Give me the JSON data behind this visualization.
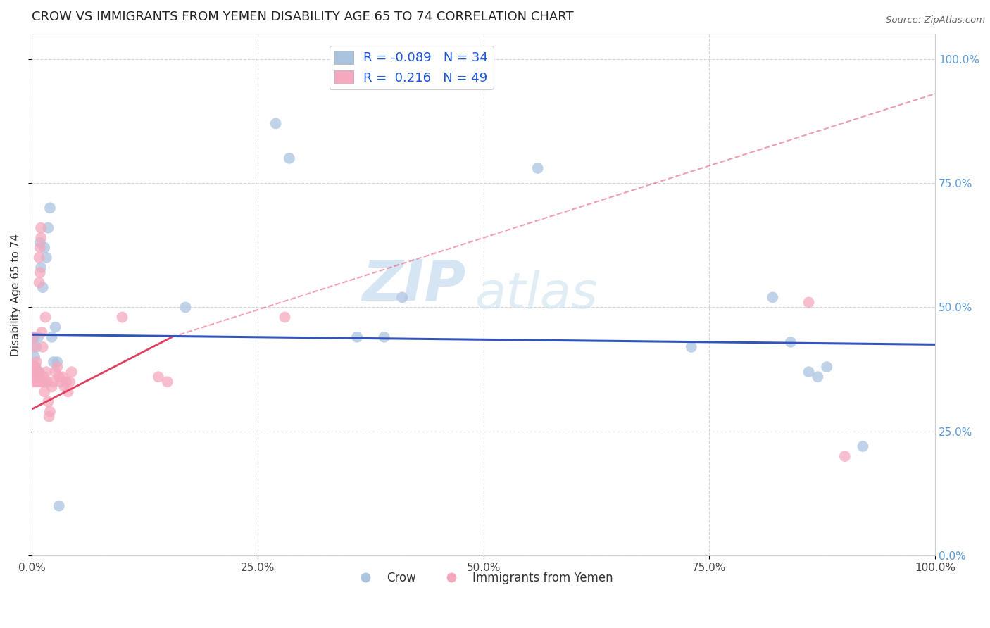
{
  "title": "CROW VS IMMIGRANTS FROM YEMEN DISABILITY AGE 65 TO 74 CORRELATION CHART",
  "source": "Source: ZipAtlas.com",
  "ylabel": "Disability Age 65 to 74",
  "watermark_zip": "ZIP",
  "watermark_atlas": "atlas",
  "xlim": [
    0.0,
    1.0
  ],
  "ylim": [
    0.0,
    1.05
  ],
  "xticks": [
    0.0,
    0.25,
    0.5,
    0.75,
    1.0
  ],
  "yticks": [
    0.0,
    0.25,
    0.5,
    0.75,
    1.0
  ],
  "crow_color": "#aac4e0",
  "yemen_color": "#f5a8be",
  "crow_line_color": "#3355bb",
  "yemen_line_color": "#e04060",
  "crow_R": -0.089,
  "crow_N": 34,
  "yemen_R": 0.216,
  "yemen_N": 49,
  "crow_scatter": [
    [
      0.001,
      0.44
    ],
    [
      0.002,
      0.44
    ],
    [
      0.003,
      0.4
    ],
    [
      0.004,
      0.38
    ],
    [
      0.005,
      0.42
    ],
    [
      0.006,
      0.37
    ],
    [
      0.007,
      0.44
    ],
    [
      0.008,
      0.37
    ],
    [
      0.009,
      0.63
    ],
    [
      0.01,
      0.58
    ],
    [
      0.012,
      0.54
    ],
    [
      0.014,
      0.62
    ],
    [
      0.016,
      0.6
    ],
    [
      0.018,
      0.66
    ],
    [
      0.02,
      0.7
    ],
    [
      0.022,
      0.44
    ],
    [
      0.024,
      0.39
    ],
    [
      0.026,
      0.46
    ],
    [
      0.028,
      0.39
    ],
    [
      0.03,
      0.1
    ],
    [
      0.17,
      0.5
    ],
    [
      0.27,
      0.87
    ],
    [
      0.285,
      0.8
    ],
    [
      0.36,
      0.44
    ],
    [
      0.39,
      0.44
    ],
    [
      0.41,
      0.52
    ],
    [
      0.56,
      0.78
    ],
    [
      0.73,
      0.42
    ],
    [
      0.82,
      0.52
    ],
    [
      0.84,
      0.43
    ],
    [
      0.86,
      0.37
    ],
    [
      0.87,
      0.36
    ],
    [
      0.88,
      0.38
    ],
    [
      0.92,
      0.22
    ]
  ],
  "yemen_scatter": [
    [
      0.001,
      0.44
    ],
    [
      0.002,
      0.42
    ],
    [
      0.002,
      0.38
    ],
    [
      0.003,
      0.36
    ],
    [
      0.003,
      0.35
    ],
    [
      0.004,
      0.37
    ],
    [
      0.004,
      0.38
    ],
    [
      0.005,
      0.35
    ],
    [
      0.005,
      0.39
    ],
    [
      0.006,
      0.36
    ],
    [
      0.006,
      0.35
    ],
    [
      0.007,
      0.37
    ],
    [
      0.007,
      0.35
    ],
    [
      0.008,
      0.6
    ],
    [
      0.008,
      0.55
    ],
    [
      0.009,
      0.57
    ],
    [
      0.009,
      0.62
    ],
    [
      0.01,
      0.64
    ],
    [
      0.01,
      0.66
    ],
    [
      0.011,
      0.45
    ],
    [
      0.012,
      0.42
    ],
    [
      0.012,
      0.35
    ],
    [
      0.013,
      0.36
    ],
    [
      0.013,
      0.35
    ],
    [
      0.014,
      0.33
    ],
    [
      0.015,
      0.48
    ],
    [
      0.016,
      0.37
    ],
    [
      0.017,
      0.35
    ],
    [
      0.018,
      0.31
    ],
    [
      0.019,
      0.28
    ],
    [
      0.02,
      0.29
    ],
    [
      0.022,
      0.34
    ],
    [
      0.024,
      0.35
    ],
    [
      0.026,
      0.37
    ],
    [
      0.028,
      0.38
    ],
    [
      0.03,
      0.36
    ],
    [
      0.032,
      0.35
    ],
    [
      0.034,
      0.36
    ],
    [
      0.036,
      0.34
    ],
    [
      0.038,
      0.35
    ],
    [
      0.04,
      0.33
    ],
    [
      0.042,
      0.35
    ],
    [
      0.044,
      0.37
    ],
    [
      0.1,
      0.48
    ],
    [
      0.14,
      0.36
    ],
    [
      0.15,
      0.35
    ],
    [
      0.28,
      0.48
    ],
    [
      0.86,
      0.51
    ],
    [
      0.9,
      0.2
    ]
  ],
  "background_color": "#ffffff",
  "grid_color": "#cccccc",
  "title_fontsize": 13,
  "axis_label_fontsize": 11,
  "tick_fontsize": 11,
  "right_tick_color": "#5b9bd5",
  "legend_label_color": "#1a56db"
}
